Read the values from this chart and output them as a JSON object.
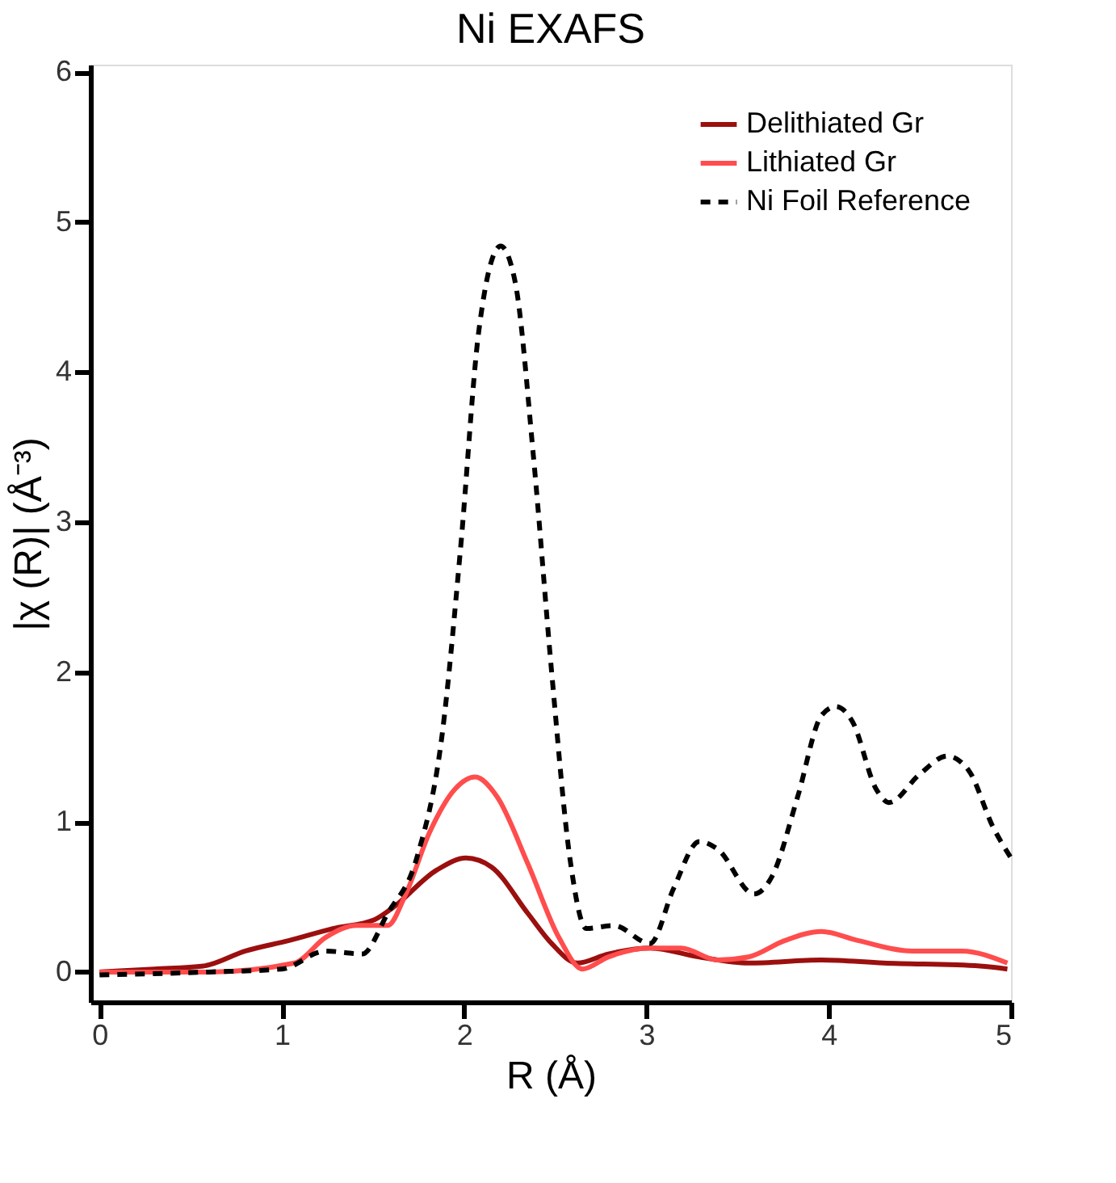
{
  "chart_data": {
    "type": "line",
    "title": "Ni EXAFS",
    "xlabel": "R (Å)",
    "ylabel": "|χ (R)| (Å⁻³)",
    "xlim": [
      -0.05,
      5
    ],
    "xticks": [
      0,
      1,
      2,
      3,
      4,
      5
    ],
    "ylim": [
      -0.2,
      6.05
    ],
    "yticks": [
      0,
      1,
      2,
      3,
      4,
      5,
      6
    ],
    "grid": false,
    "legend": "top right",
    "series": [
      {
        "name": "Delithiated Gr",
        "color": "#9b0f0f",
        "line_style": "solid",
        "x": [
          0,
          0.3,
          0.57,
          0.8,
          1.04,
          1.28,
          1.51,
          1.61,
          1.85,
          2.01,
          2.15,
          2.35,
          2.48,
          2.62,
          2.79,
          3.02,
          3.29,
          3.56,
          3.96,
          4.3,
          4.83,
          4.98
        ],
        "values": [
          0,
          0.02,
          0.04,
          0.14,
          0.21,
          0.29,
          0.35,
          0.43,
          0.68,
          0.76,
          0.7,
          0.39,
          0.19,
          0.06,
          0.12,
          0.16,
          0.1,
          0.06,
          0.08,
          0.06,
          0.04,
          0.02
        ]
      },
      {
        "name": "Lithiated Gr",
        "color": "#ff4d4d",
        "line_style": "solid",
        "x": [
          0,
          0.6,
          1.07,
          1.24,
          1.41,
          1.58,
          1.68,
          1.81,
          1.95,
          2.06,
          2.18,
          2.35,
          2.52,
          2.65,
          2.79,
          3.02,
          3.19,
          3.39,
          3.56,
          3.76,
          3.96,
          4.16,
          4.46,
          4.73,
          4.98
        ],
        "values": [
          0,
          0,
          0.06,
          0.23,
          0.31,
          0.31,
          0.52,
          0.93,
          1.22,
          1.3,
          1.17,
          0.72,
          0.23,
          0.02,
          0.1,
          0.16,
          0.16,
          0.08,
          0.1,
          0.21,
          0.27,
          0.21,
          0.14,
          0.14,
          0.06
        ]
      },
      {
        "name": "Ni Foil Reference",
        "color": "#000000",
        "line_style": "dashed",
        "x": [
          0,
          0.6,
          1.0,
          1.24,
          1.44,
          1.58,
          1.74,
          1.88,
          1.98,
          2.08,
          2.2,
          2.28,
          2.38,
          2.48,
          2.58,
          2.67,
          2.82,
          3.02,
          3.15,
          3.29,
          3.39,
          3.59,
          3.69,
          3.83,
          3.96,
          4.04,
          4.13,
          4.26,
          4.33,
          4.5,
          4.65,
          4.77,
          4.9,
          5.0
        ],
        "values": [
          -0.02,
          0,
          0.02,
          0.14,
          0.12,
          0.39,
          0.76,
          1.59,
          2.82,
          4.27,
          4.84,
          4.6,
          3.44,
          2.0,
          0.76,
          0.29,
          0.31,
          0.19,
          0.56,
          0.87,
          0.82,
          0.52,
          0.64,
          1.17,
          1.71,
          1.77,
          1.67,
          1.22,
          1.13,
          1.32,
          1.44,
          1.34,
          0.97,
          0.76
        ]
      }
    ]
  }
}
